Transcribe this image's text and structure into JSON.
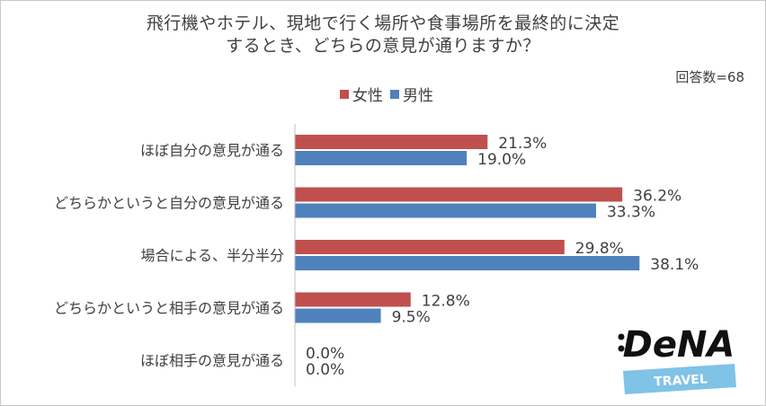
{
  "chart_data": {
    "type": "bar",
    "orientation": "horizontal",
    "title_lines": [
      "飛行機やホテル、現地で行く場所や食事場所を最終的に決定",
      "するとき、どちらの意見が通りますか？"
    ],
    "respondents": "回答数=68",
    "categories": [
      "ほぼ自分の意見が通る",
      "どちらかというと自分の意見が通る",
      "場合による、半分半分",
      "どちらかというと相手の意見が通る",
      "ほぼ相手の意見が通る"
    ],
    "series": [
      {
        "name": "女性",
        "color": "#c0504d",
        "values": [
          21.3,
          36.2,
          29.8,
          12.8,
          0.0
        ]
      },
      {
        "name": "男性",
        "color": "#4f81bd",
        "values": [
          19.0,
          33.3,
          38.1,
          9.5,
          0.0
        ]
      }
    ],
    "value_format": "percent_1dp",
    "xlim": [
      0,
      40
    ],
    "grid": false,
    "legend_position": "top"
  },
  "logo": {
    "brand": "DeNA",
    "sub": "TRAVEL",
    "colors": {
      "text": "#111111",
      "band": "#7fc3e6"
    }
  }
}
